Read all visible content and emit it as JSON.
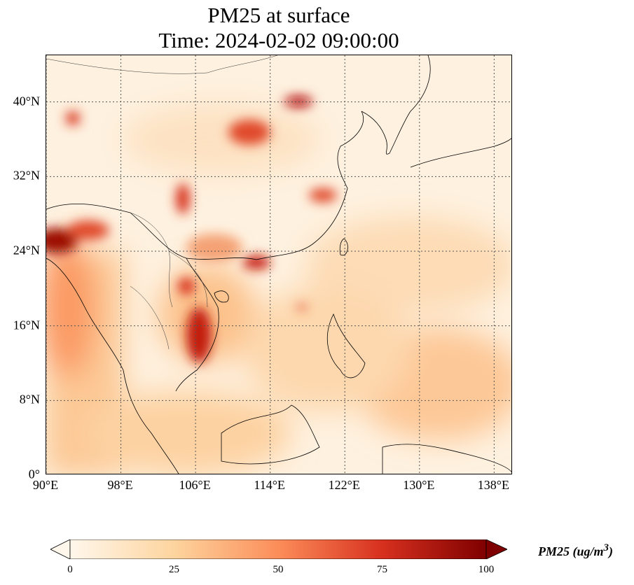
{
  "title": {
    "line1": "PM25 at surface",
    "line2": "Time: 2024-02-02 09:00:00"
  },
  "map": {
    "projection": "PlateCarree",
    "lon_range": [
      90,
      140
    ],
    "lat_range": [
      0,
      45
    ],
    "lat_ticks": [
      {
        "v": 40,
        "label": "40°N"
      },
      {
        "v": 32,
        "label": "32°N"
      },
      {
        "v": 24,
        "label": "24°N"
      },
      {
        "v": 16,
        "label": "16°N"
      },
      {
        "v": 8,
        "label": "8°N"
      },
      {
        "v": 0,
        "label": "0°"
      }
    ],
    "lon_ticks": [
      {
        "v": 90,
        "label": "90°E"
      },
      {
        "v": 98,
        "label": "98°E"
      },
      {
        "v": 106,
        "label": "106°E"
      },
      {
        "v": 114,
        "label": "114°E"
      },
      {
        "v": 122,
        "label": "122°E"
      },
      {
        "v": 130,
        "label": "130°E"
      },
      {
        "v": 138,
        "label": "138°E"
      }
    ],
    "gridlines": true
  },
  "colorbar": {
    "label": "PM25 (ug/m",
    "label_sup": "3",
    "label_close": ")",
    "range": [
      0,
      100
    ],
    "extend": "both",
    "colormap": "OrRd",
    "colors": [
      "#fff7ec",
      "#fdd49e",
      "#fc8d59",
      "#d7301f",
      "#7f0000"
    ],
    "ticks": [
      {
        "v": 0,
        "label": "0"
      },
      {
        "v": 25,
        "label": "25"
      },
      {
        "v": 50,
        "label": "50"
      },
      {
        "v": 75,
        "label": "75"
      },
      {
        "v": 100,
        "label": "100"
      }
    ]
  }
}
